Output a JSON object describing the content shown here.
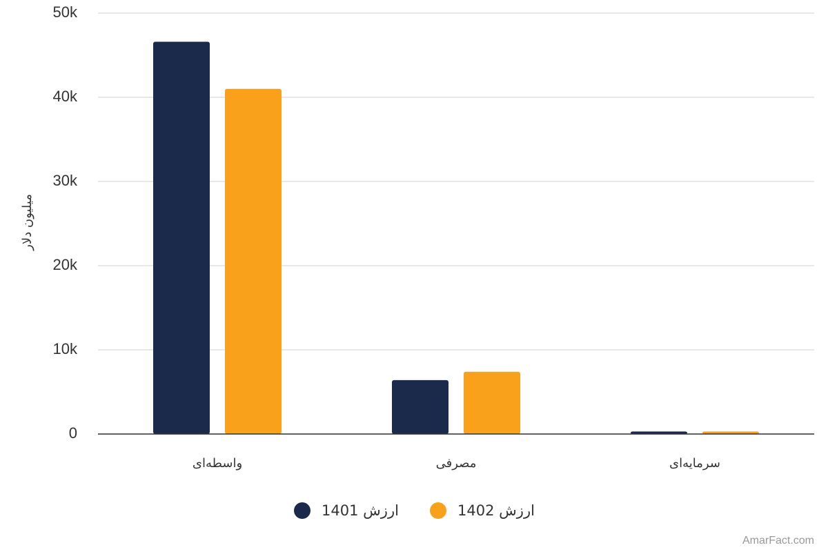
{
  "chart_data": {
    "type": "bar",
    "y_label": "میلیون دلار",
    "categories": [
      "واسطه‌ای",
      "مصرفی",
      "سرمایه‌ای"
    ],
    "series": [
      {
        "name": "ارزش 1401",
        "color": "#1b2a4a",
        "values": [
          46600,
          6400,
          300
        ]
      },
      {
        "name": "ارزش 1402",
        "color": "#f9a11b",
        "values": [
          41000,
          7400,
          300
        ]
      }
    ],
    "ylim": [
      0,
      50000
    ],
    "yticks": [
      0,
      {
        "value": 10000,
        "label": "10k"
      },
      {
        "value": 20000,
        "label": "20k"
      },
      {
        "value": 30000,
        "label": "30k"
      },
      {
        "value": 40000,
        "label": "40k"
      },
      {
        "value": 50000,
        "label": "50k"
      }
    ],
    "grid": true,
    "credit": "AmarFact.com"
  }
}
